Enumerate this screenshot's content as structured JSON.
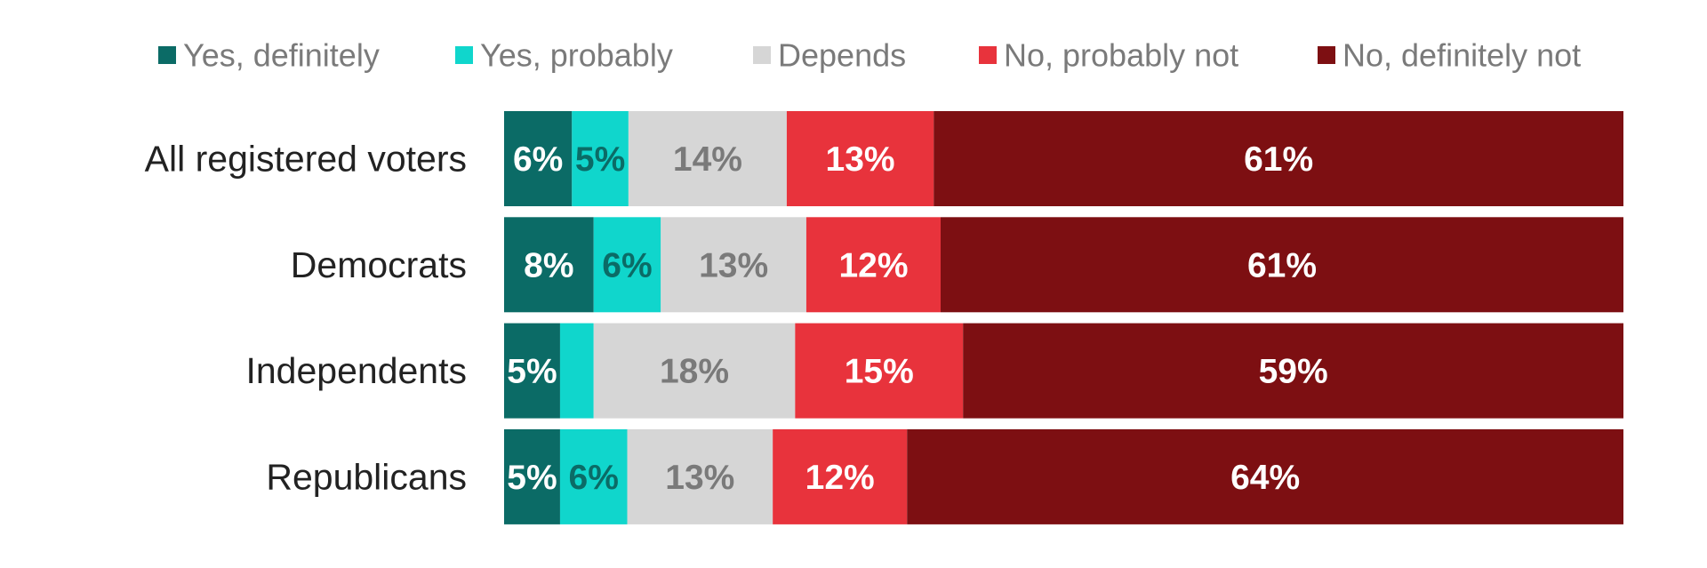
{
  "chart_data": {
    "type": "bar",
    "orientation": "horizontal",
    "stacked": true,
    "title": "",
    "xlabel": "",
    "ylabel": "",
    "xlim": [
      0,
      100
    ],
    "grid": false,
    "legend_position": "top",
    "categories": [
      "All registered voters",
      "Democrats",
      "Independents",
      "Republicans"
    ],
    "series": [
      {
        "name": "Yes, definitely",
        "color": "#0b6b66",
        "label_color": "#ffffff",
        "values": [
          6,
          8,
          5,
          5
        ],
        "labels": [
          "6%",
          "8%",
          "5%",
          "5%"
        ]
      },
      {
        "name": "Yes, probably",
        "color": "#10d6cc",
        "label_color": "#0b6b66",
        "values": [
          5,
          6,
          3,
          6
        ],
        "labels": [
          "5%",
          "6%",
          "",
          "6%"
        ]
      },
      {
        "name": "Depends",
        "color": "#d6d6d6",
        "label_color": "#7a7a7a",
        "values": [
          14,
          13,
          18,
          13
        ],
        "labels": [
          "14%",
          "13%",
          "18%",
          "13%"
        ]
      },
      {
        "name": "No, probably not",
        "color": "#e8333c",
        "label_color": "#ffffff",
        "values": [
          13,
          12,
          15,
          12
        ],
        "labels": [
          "13%",
          "12%",
          "15%",
          "12%"
        ]
      },
      {
        "name": "No, definitely not",
        "color": "#7d0f12",
        "label_color": "#ffffff",
        "values": [
          61,
          61,
          59,
          64
        ],
        "labels": [
          "61%",
          "61%",
          "59%",
          "64%"
        ]
      }
    ]
  }
}
